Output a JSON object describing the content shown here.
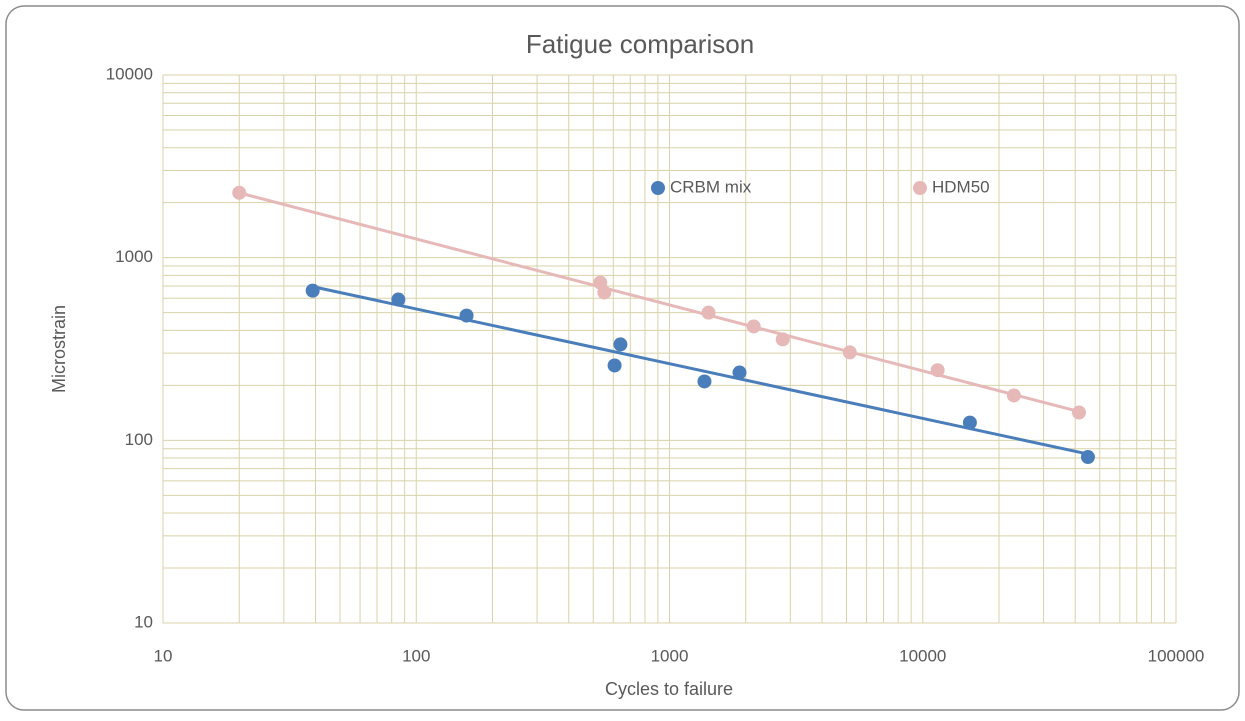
{
  "chart_data": {
    "type": "scatter",
    "title": "Fatigue comparison",
    "xlabel": "Cycles to failure",
    "ylabel": "Microstrain",
    "log_x": true,
    "log_y": true,
    "xlim": [
      10,
      100000
    ],
    "ylim": [
      10,
      10000
    ],
    "xticks": [
      10,
      100,
      1000,
      10000,
      100000
    ],
    "yticks": [
      10,
      100,
      1000,
      10000
    ],
    "grid": true,
    "minor_grid": true,
    "trendline": true,
    "legend": "top",
    "series": [
      {
        "name": "CRBM mix",
        "color": "#4a7ebb",
        "x": [
          39,
          85,
          158,
          607,
          640,
          1374,
          1890,
          15350,
          44900
        ],
        "values": [
          660,
          590,
          482,
          257,
          335,
          210,
          235,
          125,
          81
        ]
      },
      {
        "name": "HDM50",
        "color": "#e6b9b8",
        "x": [
          20,
          533,
          553,
          1426,
          2150,
          2800,
          5150,
          11450,
          22900,
          41400
        ],
        "values": [
          2265,
          730,
          645,
          500,
          420,
          357,
          303,
          242,
          176,
          142
        ]
      }
    ]
  }
}
